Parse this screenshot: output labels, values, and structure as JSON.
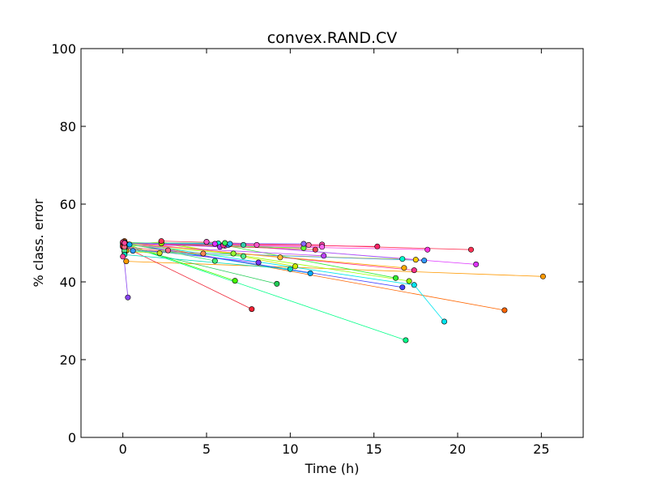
{
  "chart_data": {
    "type": "line",
    "title": "convex.RAND.CV",
    "xlabel": "Time (h)",
    "ylabel": "% class. error",
    "xlim": [
      -2.5,
      27.5
    ],
    "ylim": [
      0,
      100
    ],
    "x_ticks": [
      0,
      5,
      10,
      15,
      20,
      25
    ],
    "y_ticks": [
      0,
      20,
      40,
      60,
      80,
      100
    ],
    "grid": false,
    "legend": "none",
    "series": [
      {
        "color": "#ff6600",
        "x": [
          0.1,
          22.8
        ],
        "y": [
          50.5,
          32.7
        ]
      },
      {
        "color": "#ff9900",
        "x": [
          0.2,
          25.1
        ],
        "y": [
          45.3,
          41.4
        ]
      },
      {
        "color": "#ffaa00",
        "x": [
          0.0,
          16.8
        ],
        "y": [
          50.0,
          43.6
        ]
      },
      {
        "color": "#ffcc00",
        "x": [
          0.2,
          17.5
        ],
        "y": [
          48.0,
          45.7
        ]
      },
      {
        "color": "#ccee00",
        "x": [
          0.2,
          2.3,
          10.3
        ],
        "y": [
          49.5,
          50.3,
          44.0
        ]
      },
      {
        "color": "#99ff00",
        "x": [
          0.0,
          2.3,
          17.1
        ],
        "y": [
          50.2,
          49.9,
          40.2
        ]
      },
      {
        "color": "#44ff00",
        "x": [
          0.2,
          6.7
        ],
        "y": [
          49.7,
          40.3
        ]
      },
      {
        "color": "#33ee33",
        "x": [
          5.0,
          16.3
        ],
        "y": [
          50.3,
          41.0
        ]
      },
      {
        "color": "#22cc55",
        "x": [
          0.1,
          9.2
        ],
        "y": [
          49.0,
          39.5
        ]
      },
      {
        "color": "#00ff88",
        "x": [
          0.2,
          16.9
        ],
        "y": [
          49.5,
          25.0
        ]
      },
      {
        "color": "#00ffcc",
        "x": [
          5.7,
          16.7
        ],
        "y": [
          49.9,
          45.9
        ]
      },
      {
        "color": "#00e5ee",
        "x": [
          0.1,
          17.4,
          19.2
        ],
        "y": [
          50.2,
          39.2,
          29.8
        ]
      },
      {
        "color": "#00aaff",
        "x": [
          0.4,
          11.2
        ],
        "y": [
          49.6,
          42.2
        ]
      },
      {
        "color": "#3399ff",
        "x": [
          0.6,
          18.0
        ],
        "y": [
          48.0,
          45.5
        ]
      },
      {
        "color": "#4444ff",
        "x": [
          0.0,
          16.7
        ],
        "y": [
          50.0,
          38.6
        ]
      },
      {
        "color": "#7733ff",
        "x": [
          0.1,
          8.1
        ],
        "y": [
          48.7,
          45.0
        ]
      },
      {
        "color": "#8844ee",
        "x": [
          0.0,
          0.3
        ],
        "y": [
          49.0,
          36.0
        ]
      },
      {
        "color": "#bb44ff",
        "x": [
          0.0,
          12.0
        ],
        "y": [
          49.5,
          46.7
        ]
      },
      {
        "color": "#dd33ff",
        "x": [
          5.5,
          21.1
        ],
        "y": [
          49.8,
          44.5
        ]
      },
      {
        "color": "#ff33dd",
        "x": [
          6.1,
          18.2
        ],
        "y": [
          49.3,
          48.3
        ]
      },
      {
        "color": "#ff44aa",
        "x": [
          0.1,
          11.9
        ],
        "y": [
          49.3,
          49.6
        ]
      },
      {
        "color": "#ff3388",
        "x": [
          0.0,
          17.4
        ],
        "y": [
          50.2,
          43.0
        ]
      },
      {
        "color": "#ff3355",
        "x": [
          2.3,
          20.8
        ],
        "y": [
          50.5,
          48.3
        ]
      },
      {
        "color": "#ee2233",
        "x": [
          0.0,
          7.7
        ],
        "y": [
          49.2,
          33.0
        ]
      },
      {
        "color": "#ff8855",
        "x": [
          0.1,
          4.8
        ],
        "y": [
          48.5,
          47.3
        ]
      },
      {
        "color": "#ccdd22",
        "x": [
          0.1,
          2.2
        ],
        "y": [
          47.8,
          47.4
        ]
      },
      {
        "color": "#55ee88",
        "x": [
          0.1,
          7.2
        ],
        "y": [
          48.0,
          46.6
        ]
      },
      {
        "color": "#ffbb33",
        "x": [
          0.1,
          9.4
        ],
        "y": [
          50.0,
          46.3
        ]
      },
      {
        "color": "#99ff33",
        "x": [
          0.1,
          6.6
        ],
        "y": [
          49.5,
          47.3
        ]
      },
      {
        "color": "#44ee77",
        "x": [
          0.1,
          5.5
        ],
        "y": [
          50.0,
          45.4
        ]
      },
      {
        "color": "#ff55cc",
        "x": [
          5.0,
          8.0
        ],
        "y": [
          50.3,
          49.5
        ]
      },
      {
        "color": "#33ccaa",
        "x": [
          0.1,
          7.2
        ],
        "y": [
          50.0,
          49.5
        ]
      },
      {
        "color": "#66ff33",
        "x": [
          0.1,
          10.8
        ],
        "y": [
          50.0,
          48.7
        ]
      },
      {
        "color": "#ff77aa",
        "x": [
          0.1,
          11.1
        ],
        "y": [
          50.0,
          49.5
        ]
      },
      {
        "color": "#ee4455",
        "x": [
          0.1,
          11.5
        ],
        "y": [
          50.0,
          48.3
        ]
      },
      {
        "color": "#ff66ee",
        "x": [
          0.1,
          11.9
        ],
        "y": [
          50.0,
          49.0
        ]
      },
      {
        "color": "#8866ff",
        "x": [
          0.1,
          10.8
        ],
        "y": [
          50.0,
          49.8
        ]
      },
      {
        "color": "#00ddbb",
        "x": [
          0.1,
          10.0
        ],
        "y": [
          47.0,
          43.3
        ]
      },
      {
        "color": "#ff2266",
        "x": [
          0.1,
          15.2
        ],
        "y": [
          50.0,
          49.1
        ]
      },
      {
        "color": "#3388ee",
        "x": [
          0.1,
          6.3
        ],
        "y": [
          50.0,
          49.5
        ]
      },
      {
        "color": "#aa33ee",
        "x": [
          0.1,
          5.8
        ],
        "y": [
          50.0,
          49.0
        ]
      },
      {
        "color": "#ee3399",
        "x": [
          0.1,
          6.0
        ],
        "y": [
          50.0,
          49.4
        ]
      },
      {
        "color": "#33ee55",
        "x": [
          0.1,
          6.1
        ],
        "y": [
          50.0,
          50.0
        ]
      },
      {
        "color": "#22bbee",
        "x": [
          0.1,
          6.4
        ],
        "y": [
          50.0,
          49.8
        ]
      },
      {
        "color": "#ff6688",
        "x": [
          0.1,
          2.7
        ],
        "y": [
          49.0,
          48.1
        ]
      },
      {
        "color": "#ff4499",
        "x": [
          0.1,
          0.0
        ],
        "y": [
          50.0,
          46.5
        ]
      }
    ]
  }
}
